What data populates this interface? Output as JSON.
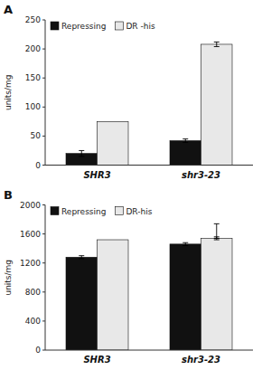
{
  "chart_data": [
    {
      "type": "bar",
      "title": "A",
      "categories": [
        "SHR3",
        "shr3-23"
      ],
      "series": [
        {
          "name": "Repressing",
          "color": "#111111",
          "values": [
            20,
            42
          ],
          "errors": [
            5,
            3
          ]
        },
        {
          "name": "DR -his",
          "color": "#e8e8e8",
          "values": [
            75,
            208
          ],
          "errors": [
            0,
            4
          ]
        }
      ],
      "ylabel": "units/mg",
      "ylim": [
        0,
        250
      ],
      "yticks": [
        0,
        50,
        100,
        150,
        200,
        250
      ],
      "grid": false,
      "legend": "upper left"
    },
    {
      "type": "bar",
      "title": "B",
      "categories": [
        "SHR3",
        "shr3-23"
      ],
      "series": [
        {
          "name": "Repressing",
          "color": "#111111",
          "values": [
            1280,
            1460
          ],
          "errors": [
            20,
            20
          ]
        },
        {
          "name": "DR-his",
          "color": "#e8e8e8",
          "values": [
            1520,
            1540
          ],
          "errors": [
            0,
            20
          ],
          "top_errors": [
            0,
            200
          ]
        }
      ],
      "ylabel": "units/mg",
      "ylim": [
        0,
        2000
      ],
      "yticks": [
        0,
        400,
        800,
        1200,
        1600,
        2000
      ],
      "grid": false,
      "legend": "upper left"
    }
  ]
}
